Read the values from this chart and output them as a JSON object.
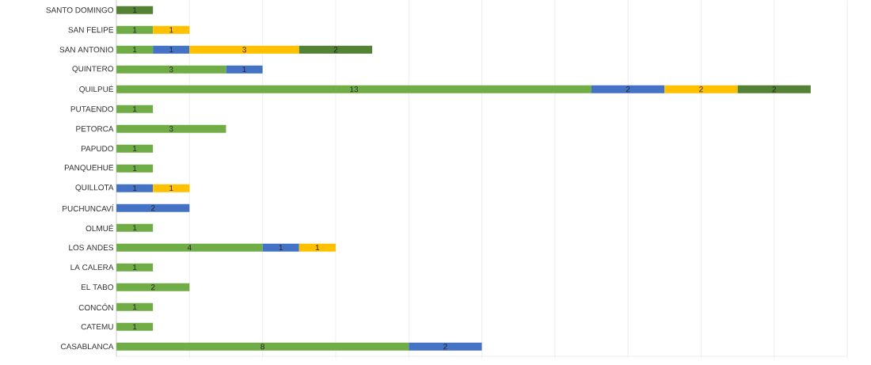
{
  "chart_data": {
    "type": "bar",
    "orientation": "horizontal",
    "stacked": true,
    "data_labels": true,
    "grid": "x",
    "tick_labels": "y",
    "categories": [
      "SANTO DOMINGO",
      "SAN FELIPE",
      "SAN ANTONIO",
      "QUINTERO",
      "QUILPUÉ",
      "PUTAENDO",
      "PETORCA",
      "PAPUDO",
      "PANQUEHUE",
      "QUILLOTA",
      "PUCHUNCAVÍ",
      "OLMUÉ",
      "LOS ANDES",
      "LA CALERA",
      "EL TABO",
      "CONCÓN",
      "CATEMU",
      "CASABLANCA"
    ],
    "xlim": [
      0,
      20
    ],
    "xticks": [
      {
        "value": 0,
        "label": null
      },
      {
        "value": 2,
        "label": null
      },
      {
        "value": 4,
        "label": null
      },
      {
        "value": 6,
        "label": null
      },
      {
        "value": 8,
        "label": null
      },
      {
        "value": 10,
        "label": null
      },
      {
        "value": 12,
        "label": null
      },
      {
        "value": 14,
        "label": null
      },
      {
        "value": 16,
        "label": null
      },
      {
        "value": 18,
        "label": null
      },
      {
        "value": 20,
        "label": null
      }
    ],
    "series": [
      {
        "color": "#70ad47",
        "values": [
          null,
          1,
          1,
          3,
          13,
          1,
          3,
          1,
          1,
          null,
          null,
          1,
          4,
          1,
          2,
          1,
          1,
          8
        ]
      },
      {
        "color": "#4472c4",
        "values": [
          null,
          null,
          1,
          1,
          2,
          null,
          null,
          null,
          null,
          1,
          2,
          null,
          1,
          null,
          null,
          null,
          null,
          2
        ]
      },
      {
        "color": "#ffc000",
        "values": [
          null,
          1,
          3,
          null,
          2,
          null,
          null,
          null,
          null,
          1,
          null,
          null,
          1,
          null,
          null,
          null,
          null,
          null
        ]
      },
      {
        "color": "#548235",
        "values": [
          1,
          null,
          2,
          null,
          2,
          null,
          null,
          null,
          null,
          null,
          null,
          null,
          null,
          null,
          null,
          null,
          null,
          null
        ]
      }
    ]
  }
}
